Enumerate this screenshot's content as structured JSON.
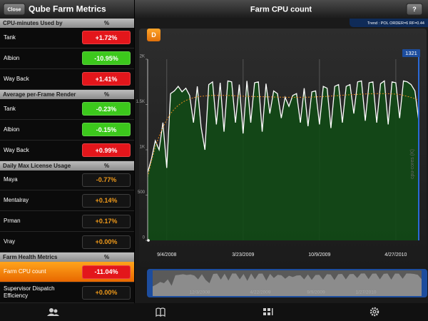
{
  "header": {
    "close": "Close",
    "title": "Qube Farm Metrics",
    "chart_title": "Farm CPU count",
    "help": "?"
  },
  "sidebar": {
    "sections": [
      {
        "title": "CPU-minutes Used by",
        "unit": "%",
        "rows": [
          {
            "label": "Tank",
            "value": "+1.72%",
            "color": "#e3161b",
            "text_color": "#ffffff"
          },
          {
            "label": "Albion",
            "value": "-10.95%",
            "color": "#3cc81c",
            "text_color": "#ffffff"
          },
          {
            "label": "Way Back",
            "value": "+1.41%",
            "color": "#e3161b",
            "text_color": "#ffffff"
          }
        ]
      },
      {
        "title": "Average per-Frame Render",
        "unit": "%",
        "rows": [
          {
            "label": "Tank",
            "value": "-0.23%",
            "color": "#3cc81c",
            "text_color": "#ffffff"
          },
          {
            "label": "Albion",
            "value": "-0.15%",
            "color": "#3cc81c",
            "text_color": "#ffffff"
          },
          {
            "label": "Way Back",
            "value": "+0.99%",
            "color": "#e3161b",
            "text_color": "#ffffff"
          }
        ]
      },
      {
        "title": "Daily Max License Usage",
        "unit": "%",
        "rows": [
          {
            "label": "Maya",
            "value": "-0.77%",
            "color": "#141414",
            "text_color": "#f09a1a"
          },
          {
            "label": "Mentalray",
            "value": "+0.14%",
            "color": "#141414",
            "text_color": "#f09a1a"
          },
          {
            "label": "Prman",
            "value": "+0.17%",
            "color": "#141414",
            "text_color": "#f09a1a"
          },
          {
            "label": "Vray",
            "value": "+0.00%",
            "color": "#141414",
            "text_color": "#f09a1a"
          }
        ]
      },
      {
        "title": "Farm Health Metrics",
        "unit": "%",
        "rows": [
          {
            "label": "Farm CPU count",
            "value": "-11.04%",
            "color": "#e3161b",
            "text_color": "#ffffff",
            "selected": true
          },
          {
            "label": "Supervisor Dispatch Efficiency",
            "value": "+0.00%",
            "color": "#141414",
            "text_color": "#f09a1a"
          }
        ]
      }
    ]
  },
  "chart_data": {
    "type": "line",
    "badge": "D",
    "trend_label": "Trend : POL ORDER=6 RF=0.44",
    "y_label": "cpu-cores (K)",
    "xlim": [
      0,
      71
    ],
    "xticks": [
      {
        "value": 5,
        "label": "9/4/2008"
      },
      {
        "value": 25,
        "label": "3/23/2009"
      },
      {
        "value": 45,
        "label": "10/9/2009"
      },
      {
        "value": 65,
        "label": "4/27/2010"
      }
    ],
    "ylim": [
      0,
      2000
    ],
    "yticks": [
      0,
      500,
      {
        "value": 1000,
        "label": "1K"
      },
      {
        "value": 1500,
        "label": "1.5K"
      },
      {
        "value": 2000,
        "label": "2K"
      }
    ],
    "grid": "x",
    "series": [
      {
        "color": "#ffffff",
        "fill": "#124a16",
        "values": [
          750,
          900,
          1100,
          1000,
          1300,
          800,
          1620,
          1650,
          1700,
          1640,
          1680,
          1600,
          1300,
          1700,
          1250,
          1000,
          1720,
          1750,
          1280,
          1740,
          1200,
          1760,
          1750,
          1300,
          1720,
          1180,
          1760,
          1300,
          1740,
          1750,
          1200,
          1730,
          1400,
          1650,
          1620,
          1350,
          1580,
          1480,
          1600,
          1620,
          1300,
          1680,
          1260,
          1640,
          1650,
          1280,
          1700,
          1680,
          1240,
          1700,
          1720,
          1300,
          1700,
          1720,
          1400,
          1750,
          1760,
          1320,
          1740,
          1750,
          1300,
          1730,
          1760,
          1280,
          1750,
          1740,
          1350,
          1760,
          1750,
          1720,
          1650,
          1321
        ]
      },
      {
        "color": "#e5891c",
        "dashed": true,
        "values": [
          700,
          880,
          1030,
          1150,
          1250,
          1330,
          1400,
          1450,
          1490,
          1520,
          1545,
          1560,
          1575,
          1585,
          1590,
          1595,
          1598,
          1600,
          1600,
          1600,
          1600,
          1600,
          1598,
          1596,
          1594,
          1592,
          1590,
          1590,
          1588,
          1587,
          1586,
          1585,
          1584,
          1583,
          1582,
          1581,
          1580,
          1580,
          1580,
          1580,
          1580,
          1580,
          1581,
          1582,
          1584,
          1586,
          1588,
          1590,
          1593,
          1596,
          1599,
          1602,
          1605,
          1608,
          1610,
          1612,
          1614,
          1616,
          1618,
          1619,
          1620,
          1620,
          1620,
          1619,
          1617,
          1614,
          1610,
          1600,
          1590,
          1578,
          1565,
          1550
        ]
      }
    ],
    "overview_labels": [
      "12/3/2008",
      "4/22/2009",
      "9/9/2009",
      "1/27/2010"
    ]
  }
}
